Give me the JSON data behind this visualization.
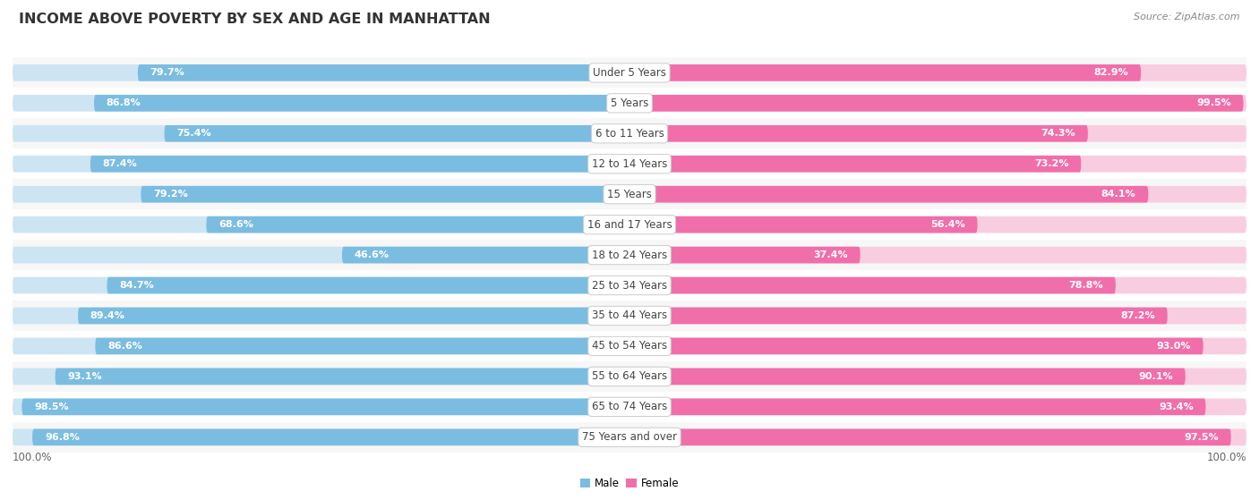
{
  "title": "INCOME ABOVE POVERTY BY SEX AND AGE IN MANHATTAN",
  "source": "Source: ZipAtlas.com",
  "categories": [
    "Under 5 Years",
    "5 Years",
    "6 to 11 Years",
    "12 to 14 Years",
    "15 Years",
    "16 and 17 Years",
    "18 to 24 Years",
    "25 to 34 Years",
    "35 to 44 Years",
    "45 to 54 Years",
    "55 to 64 Years",
    "65 to 74 Years",
    "75 Years and over"
  ],
  "male_values": [
    79.7,
    86.8,
    75.4,
    87.4,
    79.2,
    68.6,
    46.6,
    84.7,
    89.4,
    86.6,
    93.1,
    98.5,
    96.8
  ],
  "female_values": [
    82.9,
    99.5,
    74.3,
    73.2,
    84.1,
    56.4,
    37.4,
    78.8,
    87.2,
    93.0,
    90.1,
    93.4,
    97.5
  ],
  "male_color": "#7bbde0",
  "female_color": "#f06faa",
  "male_color_light": "#cde4f3",
  "female_color_light": "#f9cde0",
  "row_bg_even": "#f7f7f7",
  "row_bg_odd": "#ffffff",
  "max_value": 100.0,
  "label_value": "100.0%",
  "title_fontsize": 11.5,
  "tick_fontsize": 8.5,
  "bar_fontsize": 8.0,
  "category_fontsize": 8.5,
  "source_fontsize": 8.0,
  "threshold_inside": 12.0
}
